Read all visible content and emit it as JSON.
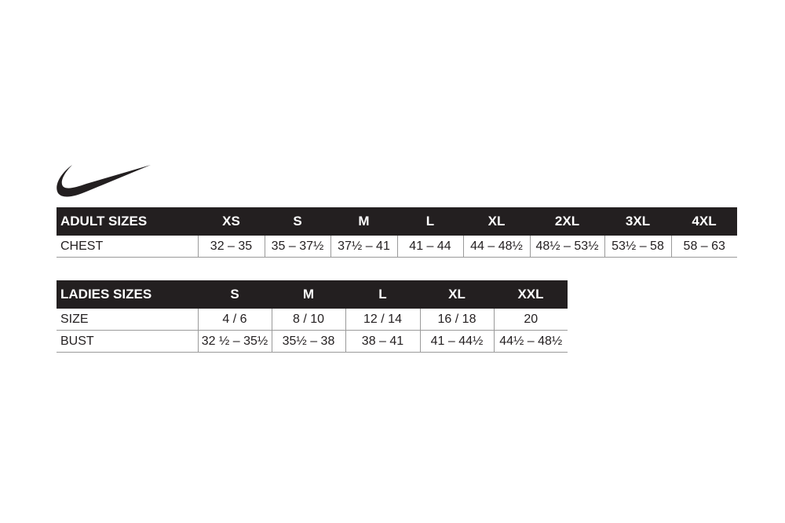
{
  "brand": {
    "logo": "nike-swoosh",
    "color": "#231f20"
  },
  "adult": {
    "title": "ADULT SIZES",
    "sizes": [
      "XS",
      "S",
      "M",
      "L",
      "XL",
      "2XL",
      "3XL",
      "4XL"
    ],
    "rows": [
      {
        "label": "CHEST",
        "values": [
          "32 – 35",
          "35 – 37½",
          "37½ – 41",
          "41 – 44",
          "44 – 48½",
          "48½ – 53½",
          "53½ – 58",
          "58 – 63"
        ]
      }
    ]
  },
  "ladies": {
    "title": "LADIES SIZES",
    "sizes": [
      "S",
      "M",
      "L",
      "XL",
      "XXL"
    ],
    "rows": [
      {
        "label": "SIZE",
        "values": [
          "4 / 6",
          "8 / 10",
          "12 / 14",
          "16 / 18",
          "20"
        ]
      },
      {
        "label": "BUST",
        "values": [
          "32 ½ – 35½",
          "35½ – 38",
          "38 – 41",
          "41 – 44½",
          "44½ – 48½"
        ]
      }
    ]
  }
}
